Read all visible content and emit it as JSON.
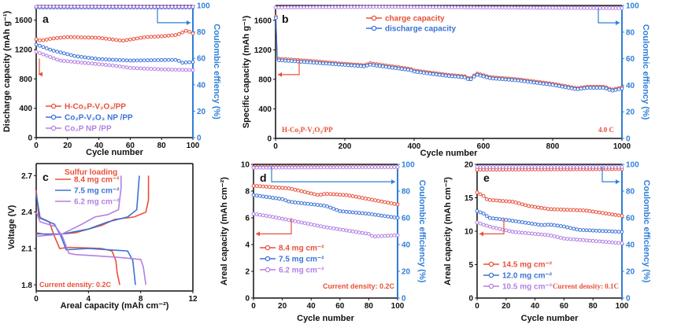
{
  "colors": {
    "red": "#e8503a",
    "blue": "#3a72d6",
    "purple": "#b47fe3",
    "axis2": "#2f7fd8"
  },
  "chart_data": [
    {
      "id": "a",
      "type": "line",
      "panel_label": "a",
      "xlabel": "Cycle number",
      "ylabel": "Discharge capacity (mAh g⁻¹)",
      "y2label": "Coulombic effiency (%)",
      "xlim": [
        0,
        100
      ],
      "xticks": [
        0,
        20,
        40,
        60,
        80,
        100
      ],
      "ylim": [
        0,
        1800
      ],
      "yticks": [
        0,
        400,
        800,
        1200,
        1600
      ],
      "y2lim": [
        0,
        100
      ],
      "y2ticks": [
        0,
        20,
        40,
        60,
        80,
        100
      ],
      "series": [
        {
          "name": "H-Co₂P-V₂O₃/PP",
          "color": "#e8503a",
          "axis": "y",
          "points": [
            [
              0,
              1340
            ],
            [
              3,
              1320
            ],
            [
              10,
              1350
            ],
            [
              20,
              1370
            ],
            [
              40,
              1360
            ],
            [
              55,
              1320
            ],
            [
              70,
              1370
            ],
            [
              80,
              1380
            ],
            [
              90,
              1400
            ],
            [
              96,
              1460
            ],
            [
              100,
              1420
            ]
          ]
        },
        {
          "name": "Co₂P-V₂O₃ NP /PP",
          "color": "#3a72d6",
          "axis": "y",
          "points": [
            [
              0,
              1270
            ],
            [
              10,
              1190
            ],
            [
              25,
              1110
            ],
            [
              40,
              1070
            ],
            [
              60,
              1050
            ],
            [
              90,
              1060
            ],
            [
              93,
              1020
            ],
            [
              100,
              1030
            ]
          ]
        },
        {
          "name": "Co₂P NP /PP",
          "color": "#b47fe3",
          "axis": "y",
          "points": [
            [
              0,
              1170
            ],
            [
              15,
              1050
            ],
            [
              30,
              1020
            ],
            [
              50,
              980
            ],
            [
              60,
              950
            ],
            [
              80,
              930
            ],
            [
              100,
              920
            ]
          ]
        },
        {
          "name": "",
          "color": "#3a72d6",
          "axis": "y2",
          "points": [
            [
              0,
              98.5
            ],
            [
              100,
              98.5
            ]
          ]
        },
        {
          "name": "",
          "color": "#b47fe3",
          "axis": "y2",
          "points": [
            [
              0,
              99.2
            ],
            [
              100,
              99
            ]
          ]
        }
      ],
      "legend": [
        "H-Co₂P-V₂O₃/PP",
        "Co₂P-V₂O₃ NP /PP",
        "Co₂P NP /PP"
      ]
    },
    {
      "id": "b",
      "type": "line",
      "panel_label": "b",
      "xlabel": "Cycle number",
      "ylabel": "Specific capacity (mAh g⁻¹)",
      "y2label": "Coulombic effiency (%)",
      "xlim": [
        0,
        1000
      ],
      "xticks": [
        0,
        200,
        400,
        600,
        800,
        1000
      ],
      "ylim": [
        0,
        1800
      ],
      "yticks": [
        0,
        400,
        800,
        1200,
        1600
      ],
      "y2lim": [
        0,
        100
      ],
      "y2ticks": [
        0,
        20,
        40,
        60,
        80,
        100
      ],
      "series": [
        {
          "name": "charge capacity",
          "color": "#e8503a",
          "axis": "y",
          "points": [
            [
              1,
              1650
            ],
            [
              5,
              1080
            ],
            [
              100,
              1050
            ],
            [
              200,
              1010
            ],
            [
              260,
              990
            ],
            [
              270,
              1020
            ],
            [
              390,
              940
            ],
            [
              400,
              920
            ],
            [
              500,
              860
            ],
            [
              550,
              840
            ],
            [
              560,
              800
            ],
            [
              580,
              880
            ],
            [
              620,
              830
            ],
            [
              700,
              800
            ],
            [
              800,
              740
            ],
            [
              870,
              680
            ],
            [
              900,
              700
            ],
            [
              950,
              700
            ],
            [
              970,
              660
            ],
            [
              1000,
              690
            ]
          ]
        },
        {
          "name": "discharge capacity",
          "color": "#3a72d6",
          "axis": "y",
          "points": [
            [
              1,
              1630
            ],
            [
              5,
              1060
            ],
            [
              100,
              1030
            ],
            [
              200,
              995
            ],
            [
              260,
              975
            ],
            [
              270,
              1000
            ],
            [
              390,
              925
            ],
            [
              400,
              905
            ],
            [
              500,
              845
            ],
            [
              550,
              825
            ],
            [
              560,
              785
            ],
            [
              580,
              865
            ],
            [
              620,
              815
            ],
            [
              700,
              785
            ],
            [
              800,
              725
            ],
            [
              870,
              665
            ],
            [
              900,
              685
            ],
            [
              950,
              685
            ],
            [
              970,
              645
            ],
            [
              1000,
              675
            ]
          ]
        },
        {
          "name": "",
          "color": "#b47fe3",
          "axis": "y2",
          "points": [
            [
              0,
              98.5
            ],
            [
              300,
              99
            ],
            [
              600,
              98.5
            ],
            [
              1000,
              98
            ]
          ]
        }
      ],
      "legend": [
        "charge capacity",
        "discharge capacity"
      ],
      "annotations": {
        "sample": "H-Co₂P-V₂O₃/PP",
        "rate": "4.0 C"
      }
    },
    {
      "id": "c",
      "type": "line",
      "panel_label": "c",
      "xlabel": "Areal capacity (mAh cm⁻²)",
      "ylabel": "Voltage (V)",
      "xlim": [
        0,
        12
      ],
      "xticks": [
        0,
        4,
        8,
        12
      ],
      "ylim": [
        1.75,
        2.8
      ],
      "yticks": [
        1.8,
        2.1,
        2.4,
        2.7
      ],
      "yticklabels": [
        "1.8",
        "2.1",
        "2.4",
        "2.7"
      ],
      "series": [
        {
          "name": "8.4 mg cm⁻²",
          "color": "#e8503a",
          "axis": "y",
          "points": [
            [
              0,
              2.58
            ],
            [
              0.2,
              2.36
            ],
            [
              1,
              2.32
            ],
            [
              1.4,
              2.2
            ],
            [
              1.8,
              2.1
            ],
            [
              2.5,
              2.11
            ],
            [
              5,
              2.1
            ],
            [
              5.8,
              2.08
            ],
            [
              6.1,
              2.0
            ],
            [
              6.2,
              1.9
            ],
            [
              6.4,
              1.8
            ]
          ]
        },
        {
          "name": "",
          "color": "#e8503a",
          "axis": "y",
          "points": [
            [
              0,
              2.23
            ],
            [
              1,
              2.21
            ],
            [
              3,
              2.23
            ],
            [
              5,
              2.29
            ],
            [
              6,
              2.34
            ],
            [
              7.5,
              2.36
            ],
            [
              8.4,
              2.4
            ],
            [
              8.6,
              2.5
            ],
            [
              8.6,
              2.7
            ]
          ]
        },
        {
          "name": "7.5 mg cm⁻²",
          "color": "#3a72d6",
          "axis": "y",
          "points": [
            [
              0,
              2.55
            ],
            [
              0.3,
              2.35
            ],
            [
              1.4,
              2.3
            ],
            [
              1.9,
              2.2
            ],
            [
              2.3,
              2.09
            ],
            [
              4,
              2.1
            ],
            [
              7,
              2.08
            ],
            [
              7.4,
              2.0
            ],
            [
              7.5,
              1.9
            ],
            [
              7.6,
              1.8
            ]
          ]
        },
        {
          "name": "",
          "color": "#3a72d6",
          "axis": "y",
          "points": [
            [
              0,
              2.22
            ],
            [
              2,
              2.22
            ],
            [
              4,
              2.26
            ],
            [
              5.5,
              2.32
            ],
            [
              7,
              2.36
            ],
            [
              7.7,
              2.42
            ],
            [
              7.9,
              2.7
            ]
          ]
        },
        {
          "name": "6.2 mg cm⁻²",
          "color": "#b47fe3",
          "axis": "y",
          "points": [
            [
              0,
              2.4
            ],
            [
              0.3,
              2.32
            ],
            [
              1.5,
              2.28
            ],
            [
              2,
              2.2
            ],
            [
              2.5,
              2.06
            ],
            [
              3,
              2.05
            ],
            [
              6,
              2.03
            ],
            [
              8,
              2.01
            ],
            [
              8.2,
              1.95
            ],
            [
              8.4,
              1.8
            ]
          ]
        },
        {
          "name": "",
          "color": "#b47fe3",
          "axis": "y",
          "points": [
            [
              0,
              2.2
            ],
            [
              2,
              2.22
            ],
            [
              3.5,
              2.3
            ],
            [
              4.5,
              2.36
            ],
            [
              5.5,
              2.38
            ],
            [
              6.3,
              2.42
            ],
            [
              6.5,
              2.6
            ],
            [
              6.5,
              2.7
            ]
          ]
        }
      ],
      "legend_title": "Sulfur loading",
      "legend": [
        "8.4 mg cm⁻²",
        "7.5 mg cm⁻²",
        "6.2 mg cm⁻²"
      ],
      "annotations": {
        "current": "Current density: 0.2C"
      }
    },
    {
      "id": "d",
      "type": "line",
      "panel_label": "d",
      "xlabel": "Cycle number",
      "ylabel": "Areal capacity (mAh cm⁻²)",
      "y2label": "Coulombic efficiency (%)",
      "xlim": [
        0,
        100
      ],
      "xticks": [
        0,
        20,
        40,
        60,
        80,
        100
      ],
      "ylim": [
        0,
        10
      ],
      "yticks": [
        0,
        2,
        4,
        6,
        8,
        10
      ],
      "y2lim": [
        0,
        100
      ],
      "y2ticks": [
        0,
        20,
        40,
        60,
        80,
        100
      ],
      "series": [
        {
          "name": "8.4 mg cm⁻²",
          "color": "#e8503a",
          "axis": "y",
          "points": [
            [
              0,
              8.4
            ],
            [
              25,
              8.2
            ],
            [
              45,
              7.7
            ],
            [
              50,
              7.8
            ],
            [
              65,
              7.7
            ],
            [
              100,
              7.0
            ]
          ]
        },
        {
          "name": "7.5 mg cm⁻²",
          "color": "#3a72d6",
          "axis": "y",
          "points": [
            [
              0,
              7.7
            ],
            [
              20,
              7.4
            ],
            [
              25,
              7.2
            ],
            [
              50,
              6.9
            ],
            [
              60,
              6.5
            ],
            [
              80,
              6.3
            ],
            [
              100,
              6.0
            ]
          ]
        },
        {
          "name": "6.2 mg cm⁻²",
          "color": "#b47fe3",
          "axis": "y",
          "points": [
            [
              0,
              6.3
            ],
            [
              12,
              6.1
            ],
            [
              50,
              5.3
            ],
            [
              80,
              4.8
            ],
            [
              83,
              4.6
            ],
            [
              100,
              4.7
            ]
          ]
        },
        {
          "name": "",
          "color": "#e8503a",
          "axis": "y2",
          "points": [
            [
              0,
              98
            ],
            [
              100,
              98
            ]
          ]
        },
        {
          "name": "",
          "color": "#b47fe3",
          "axis": "y2",
          "points": [
            [
              0,
              97.5
            ],
            [
              100,
              98
            ]
          ]
        }
      ],
      "legend": [
        "8.4 mg cm⁻²",
        "7.5 mg cm⁻²",
        "6.2 mg cm⁻²"
      ],
      "annotations": {
        "current": "Current density: 0.2C"
      }
    },
    {
      "id": "e",
      "type": "line",
      "panel_label": "e",
      "xlabel": "Cycle number",
      "ylabel": "Areal capacity (mAh cm⁻²)",
      "y2label": "Coulombic efficiency (%)",
      "xlim": [
        0,
        100
      ],
      "xticks": [
        0,
        20,
        40,
        60,
        80,
        100
      ],
      "ylim": [
        0,
        20
      ],
      "yticks": [
        0,
        5,
        10,
        15,
        20
      ],
      "y2lim": [
        0,
        100
      ],
      "y2ticks": [
        0,
        20,
        40,
        60,
        80,
        100
      ],
      "series": [
        {
          "name": "14.5 mg cm⁻²",
          "color": "#e8503a",
          "axis": "y",
          "points": [
            [
              0,
              15.8
            ],
            [
              5,
              15.2
            ],
            [
              7,
              14.7
            ],
            [
              25,
              14.4
            ],
            [
              35,
              13.8
            ],
            [
              50,
              13.3
            ],
            [
              75,
              13.1
            ],
            [
              100,
              12.3
            ]
          ]
        },
        {
          "name": "12.0 mg cm⁻²",
          "color": "#3a72d6",
          "axis": "y",
          "points": [
            [
              0,
              13
            ],
            [
              5,
              12.6
            ],
            [
              8,
              12
            ],
            [
              20,
              11.7
            ],
            [
              45,
              10.9
            ],
            [
              50,
              11
            ],
            [
              60,
              10.7
            ],
            [
              70,
              10.2
            ],
            [
              100,
              9.9
            ]
          ]
        },
        {
          "name": "10.5 mg cm⁻²",
          "color": "#b47fe3",
          "axis": "y",
          "points": [
            [
              0,
              11.3
            ],
            [
              10,
              10.6
            ],
            [
              25,
              9.9
            ],
            [
              50,
              9.4
            ],
            [
              60,
              8.9
            ],
            [
              100,
              8.2
            ]
          ]
        },
        {
          "name": "",
          "color": "#e8503a",
          "axis": "y2",
          "points": [
            [
              0,
              96
            ],
            [
              100,
              96.5
            ]
          ]
        },
        {
          "name": "",
          "color": "#b47fe3",
          "axis": "y2",
          "points": [
            [
              0,
              98
            ],
            [
              100,
              98
            ]
          ]
        }
      ],
      "legend": [
        "14.5 mg cm⁻²",
        "12.0 mg cm⁻²",
        "10.5 mg cm⁻²"
      ],
      "annotations": {
        "current": "Current density: 0.1C"
      }
    }
  ]
}
